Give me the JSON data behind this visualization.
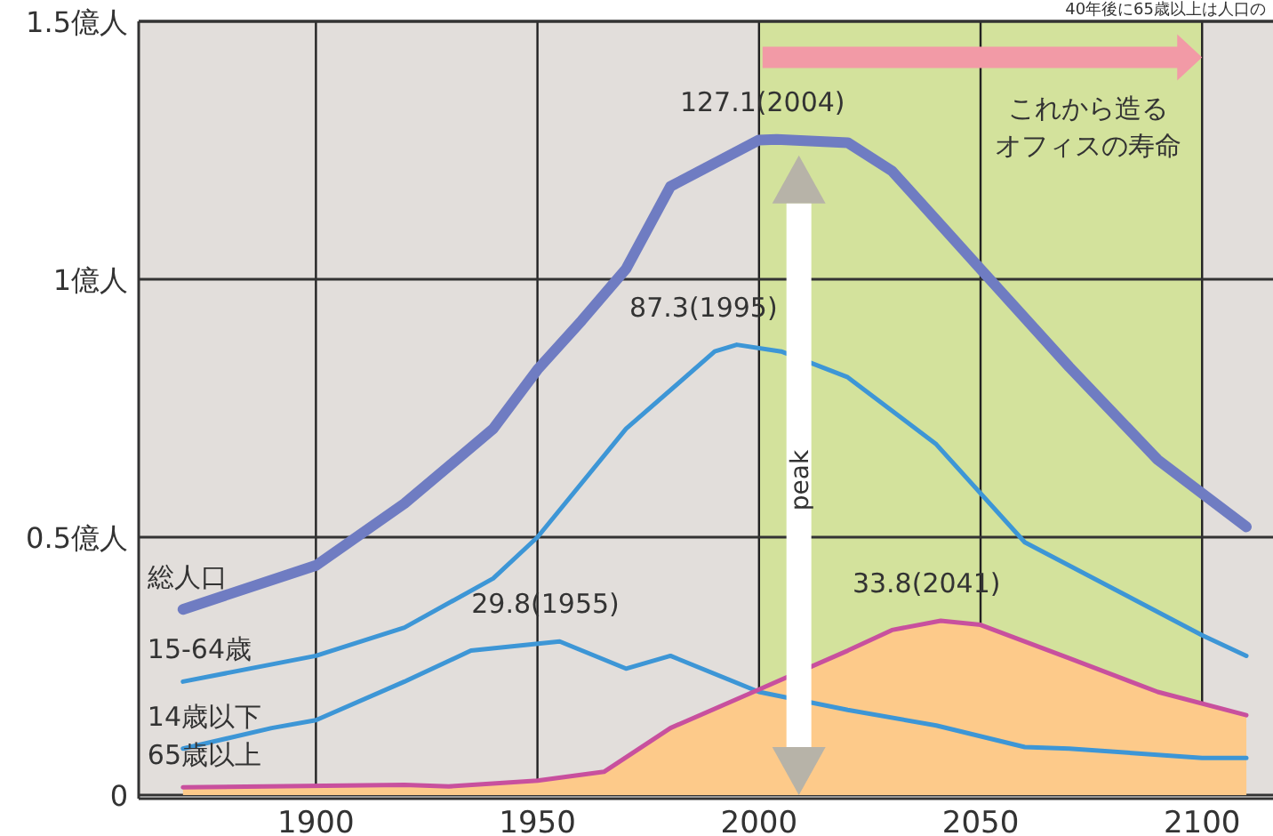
{
  "chart_data": {
    "type": "line",
    "xlim": [
      1860,
      2116
    ],
    "ylim": [
      0,
      1.5
    ],
    "xticks": [
      1900,
      1950,
      2000,
      2050,
      2100
    ],
    "yticks": [
      {
        "value": 0,
        "label": "0"
      },
      {
        "value": 0.5,
        "label": "0.5億人"
      },
      {
        "value": 1,
        "label": "1億人"
      },
      {
        "value": 1.5,
        "label": "1.5億人"
      }
    ],
    "grid": true,
    "series": [
      {
        "type": "area",
        "color": "#fdca8a",
        "x": [
          1870,
          1920,
          1930,
          1950,
          1965,
          1980,
          2000,
          2020,
          2030,
          2041,
          2050,
          2070,
          2090,
          2110
        ],
        "values": [
          0.015,
          0.02,
          0.017,
          0.028,
          0.045,
          0.13,
          0.205,
          0.28,
          0.32,
          0.338,
          0.33,
          0.265,
          0.2,
          0.155
        ]
      },
      {
        "name": "総人口",
        "color": "#6f7cc2",
        "x": [
          1870,
          1900,
          1920,
          1940,
          1950,
          1960,
          1970,
          1980,
          2000,
          2004,
          2020,
          2030,
          2050,
          2070,
          2090,
          2110
        ],
        "values": [
          0.36,
          0.445,
          0.565,
          0.71,
          0.825,
          0.92,
          1.02,
          1.18,
          1.27,
          1.271,
          1.265,
          1.21,
          1.02,
          0.83,
          0.65,
          0.52
        ]
      },
      {
        "name": "15-64歳",
        "color": "#3d96d6",
        "x": [
          1870,
          1900,
          1920,
          1940,
          1950,
          1970,
          1990,
          1995,
          2005,
          2020,
          2040,
          2060,
          2080,
          2100,
          2110
        ],
        "values": [
          0.22,
          0.27,
          0.325,
          0.42,
          0.5,
          0.71,
          0.86,
          0.873,
          0.86,
          0.81,
          0.68,
          0.49,
          0.4,
          0.31,
          0.27
        ]
      },
      {
        "name": "14歳以下",
        "color": "#3d96d6",
        "x": [
          1870,
          1890,
          1900,
          1920,
          1935,
          1955,
          1970,
          1980,
          2000,
          2020,
          2040,
          2060,
          2070,
          2100,
          2110
        ],
        "values": [
          0.09,
          0.13,
          0.145,
          0.22,
          0.28,
          0.298,
          0.245,
          0.27,
          0.2,
          0.165,
          0.135,
          0.093,
          0.09,
          0.072,
          0.072
        ]
      },
      {
        "name": "65歳以上",
        "color": "#c8509e",
        "x": [
          1870,
          1920,
          1930,
          1950,
          1965,
          1980,
          2000,
          2020,
          2030,
          2041,
          2050,
          2070,
          2090,
          2110
        ],
        "values": [
          0.015,
          0.02,
          0.017,
          0.028,
          0.045,
          0.13,
          0.205,
          0.28,
          0.32,
          0.338,
          0.33,
          0.265,
          0.2,
          0.155
        ]
      }
    ],
    "bands": [
      {
        "axis": "x",
        "from": 2000,
        "to": 2100,
        "color": "#d3e29c"
      }
    ],
    "annotations": [
      {
        "text": "127.1(2004)",
        "x": 2004,
        "y": 1.271
      },
      {
        "text": "87.3(1995)",
        "x": 1995,
        "y": 0.873
      },
      {
        "text": "29.8(1955)",
        "x": 1955,
        "y": 0.298
      },
      {
        "text": "33.8(2041)",
        "x": 2041,
        "y": 0.338
      },
      {
        "text": "これから造る",
        "x": 2100,
        "y": 1.43
      },
      "オフィスの寿命",
      "peak",
      "40年後に65歳以上は人口の"
    ]
  }
}
